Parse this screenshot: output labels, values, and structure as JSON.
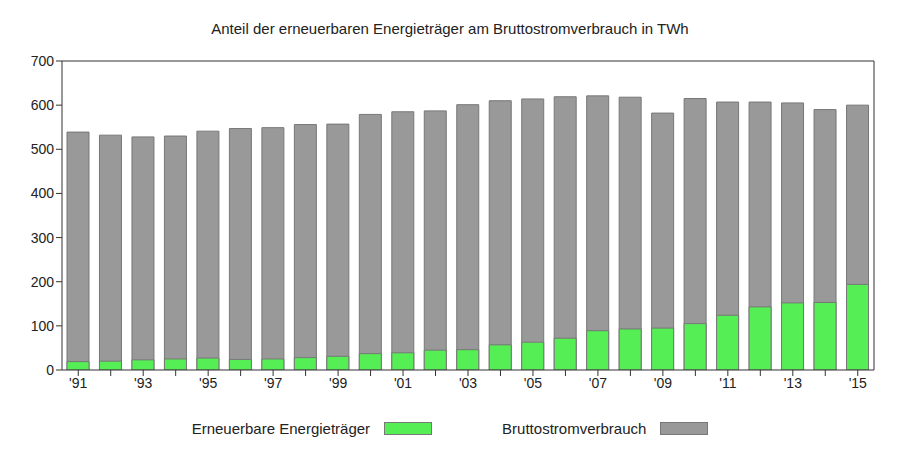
{
  "chart_data": {
    "type": "bar",
    "title": "Anteil der erneuerbaren Energieträger am Bruttostromverbrauch in TWh",
    "categories": [
      "'91",
      null,
      "'93",
      null,
      "'95",
      null,
      "'97",
      null,
      "'99",
      null,
      "'01",
      null,
      "'03",
      null,
      "'05",
      null,
      "'07",
      null,
      "'09",
      null,
      "'11",
      null,
      "'13",
      null,
      "'15"
    ],
    "series": [
      {
        "name": "Bruttostromverbrauch",
        "color": "#999999",
        "values": [
          539,
          532,
          528,
          530,
          541,
          547,
          549,
          556,
          557,
          579,
          585,
          587,
          601,
          610,
          614,
          619,
          621,
          618,
          582,
          615,
          607,
          607,
          605,
          590,
          600
        ]
      },
      {
        "name": "Erneuerbare Energieträger",
        "color": "#55ee55",
        "values": [
          19,
          20,
          23,
          25,
          27,
          24,
          25,
          28,
          31,
          37,
          39,
          45,
          46,
          57,
          63,
          72,
          89,
          93,
          95,
          105,
          124,
          143,
          152,
          153,
          194
        ]
      }
    ],
    "ylim": [
      0,
      700
    ],
    "yticks": [
      0,
      100,
      200,
      300,
      400,
      500,
      600,
      700
    ],
    "grid": false,
    "legend": "bottom",
    "stacked": false
  }
}
